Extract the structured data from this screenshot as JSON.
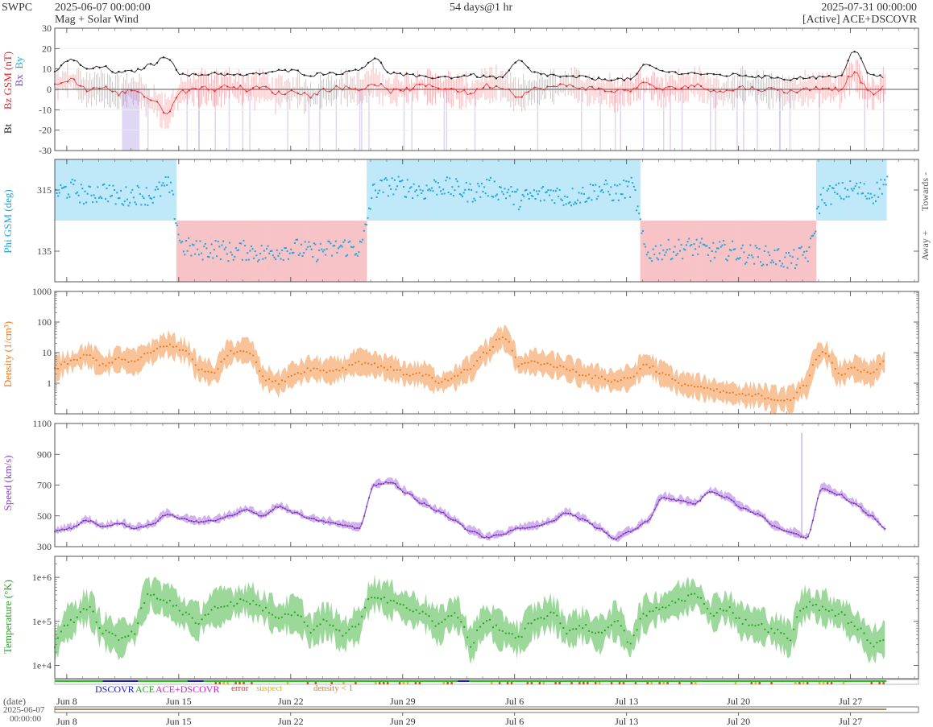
{
  "header": {
    "brand": "SWPC",
    "start_time": "2025-06-07 00:00:00",
    "product": "Mag + Solar Wind",
    "span": "54 days@1 hr",
    "end_time": "2025-07-31 00:00:00",
    "source": "[Active] ACE+DSCOVR"
  },
  "legend": {
    "dscovr": "DSCOVR",
    "ace": "ACE",
    "ace_dscovr": "ACE+DSCOVR",
    "error": "error",
    "suspect": "suspect",
    "density_lt1": "density < 1"
  },
  "footer": {
    "date_label": "(date)",
    "date_value": "2025-06-07",
    "time_value": "00:00:00"
  },
  "colors": {
    "bt": "#222222",
    "bz": "#e8242b",
    "by": "#1aa7e0",
    "bx": "#7a3fc0",
    "towards_fill": "#bfe8f8",
    "away_fill": "#f8c3c6",
    "density": "#f07a1c",
    "speed": "#8c3fd0",
    "temperature": "#22a81c"
  },
  "chart_data": [
    {
      "type": "line",
      "panel": "Magnetic field",
      "ylabel_parts": [
        "Bt",
        "Bz GSM (nT)",
        "Bx",
        "By"
      ],
      "ylim": [
        -30,
        30
      ],
      "yticks": [
        -30,
        -20,
        -10,
        0,
        10,
        20,
        30
      ],
      "x_days": [
        0,
        1,
        2,
        3,
        4,
        5,
        6,
        7,
        8,
        9,
        10,
        11,
        12,
        13,
        14,
        15,
        16,
        17,
        18,
        19,
        20,
        21,
        22,
        23,
        24,
        25,
        26,
        27,
        28,
        29,
        30,
        31,
        32,
        33,
        34,
        35,
        36,
        37,
        38,
        39,
        40,
        41,
        42,
        43,
        44,
        45,
        46,
        47,
        48,
        49,
        50,
        51,
        52,
        53
      ],
      "series": [
        {
          "name": "Bt",
          "values": [
            9,
            15,
            10,
            11,
            8,
            9,
            12,
            16,
            7,
            7,
            8,
            7,
            7,
            8,
            9,
            9,
            7,
            8,
            8,
            10,
            15,
            8,
            7,
            6,
            6,
            6,
            7,
            6,
            6,
            14,
            8,
            7,
            6,
            6,
            5,
            5,
            5,
            12,
            9,
            8,
            8,
            7,
            7,
            7,
            6,
            6,
            5,
            6,
            6,
            6,
            19,
            7,
            6,
            6
          ]
        },
        {
          "name": "Bz",
          "values": [
            2,
            5,
            0,
            1,
            -2,
            0,
            -5,
            -11,
            -1,
            1,
            0,
            2,
            0,
            1,
            -2,
            -1,
            -3,
            0,
            1,
            0,
            3,
            -1,
            0,
            2,
            1,
            0,
            -2,
            2,
            1,
            -3,
            0,
            1,
            2,
            1,
            0,
            -1,
            0,
            3,
            0,
            1,
            2,
            0,
            -1,
            1,
            0,
            0,
            -1,
            0,
            1,
            0,
            8,
            -2,
            1,
            0
          ]
        }
      ]
    },
    {
      "type": "scatter",
      "panel": "Phi GSM",
      "ylabel": "Phi GSM (deg)",
      "yticks": [
        135,
        315
      ],
      "ylim": [
        45,
        405
      ],
      "side_labels": [
        "Towards -",
        "Away +"
      ],
      "x_days": [
        0,
        1,
        2,
        3,
        4,
        5,
        6,
        7,
        8,
        9,
        10,
        11,
        12,
        13,
        14,
        15,
        16,
        17,
        18,
        19,
        20,
        21,
        22,
        23,
        24,
        25,
        26,
        27,
        28,
        29,
        30,
        31,
        32,
        33,
        34,
        35,
        36,
        37,
        38,
        39,
        40,
        41,
        42,
        43,
        44,
        45,
        46,
        47,
        48,
        49,
        50,
        51,
        52,
        53
      ],
      "values": [
        310,
        320,
        300,
        315,
        295,
        305,
        300,
        330,
        150,
        140,
        145,
        135,
        140,
        130,
        140,
        145,
        135,
        140,
        150,
        145,
        320,
        330,
        325,
        315,
        330,
        320,
        310,
        325,
        315,
        290,
        300,
        310,
        295,
        305,
        320,
        310,
        325,
        130,
        140,
        145,
        150,
        135,
        140,
        130,
        125,
        120,
        110,
        130,
        300,
        310,
        320,
        305,
        340,
        330
      ]
    },
    {
      "type": "line",
      "panel": "Density",
      "ylabel": "Density (1/cm³)",
      "scale": "log",
      "ylim": [
        0.1,
        1000
      ],
      "yticks": [
        1,
        10,
        100,
        1000
      ],
      "x_days": [
        0,
        1,
        2,
        3,
        4,
        5,
        6,
        7,
        8,
        9,
        10,
        11,
        12,
        13,
        14,
        15,
        16,
        17,
        18,
        19,
        20,
        21,
        22,
        23,
        24,
        25,
        26,
        27,
        28,
        29,
        30,
        31,
        32,
        33,
        34,
        35,
        36,
        37,
        38,
        39,
        40,
        41,
        42,
        43,
        44,
        45,
        46,
        47,
        48,
        49,
        50,
        51,
        52,
        53
      ],
      "values": [
        3,
        5,
        8,
        4,
        6,
        5,
        10,
        18,
        12,
        3,
        2,
        10,
        12,
        1.5,
        1,
        2,
        3,
        2.5,
        3,
        5,
        4,
        3,
        2,
        2,
        1,
        1.5,
        3,
        10,
        30,
        4,
        5,
        4,
        3,
        2,
        1.5,
        1.2,
        1.5,
        4,
        2,
        1,
        0.8,
        0.6,
        0.5,
        0.4,
        0.4,
        0.3,
        0.3,
        0.8,
        10,
        2,
        3,
        2,
        5,
        4
      ]
    },
    {
      "type": "line",
      "panel": "Speed",
      "ylabel": "Speed (km/s)",
      "ylim": [
        300,
        1100
      ],
      "yticks": [
        300,
        500,
        700,
        900,
        1100
      ],
      "x_days": [
        0,
        1,
        2,
        3,
        4,
        5,
        6,
        7,
        8,
        9,
        10,
        11,
        12,
        13,
        14,
        15,
        16,
        17,
        18,
        19,
        20,
        21,
        22,
        23,
        24,
        25,
        26,
        27,
        28,
        29,
        30,
        31,
        32,
        33,
        34,
        35,
        36,
        37,
        38,
        39,
        40,
        41,
        42,
        43,
        44,
        45,
        46,
        47,
        48,
        49,
        50,
        51,
        52,
        53
      ],
      "values": [
        400,
        420,
        470,
        430,
        450,
        420,
        440,
        510,
        480,
        460,
        470,
        500,
        540,
        500,
        560,
        520,
        480,
        460,
        440,
        420,
        700,
        720,
        650,
        580,
        530,
        470,
        400,
        360,
        380,
        420,
        430,
        460,
        520,
        480,
        420,
        350,
        400,
        460,
        620,
        600,
        580,
        660,
        620,
        550,
        510,
        430,
        390,
        360,
        680,
        640,
        580,
        500,
        410,
        360
      ]
    },
    {
      "type": "line",
      "panel": "Temperature",
      "ylabel": "Temperature (°K)",
      "scale": "log",
      "ylim": [
        5000,
        3000000
      ],
      "ytick_labels": [
        "1e+4",
        "1e+5",
        "1e+6"
      ],
      "x_days": [
        0,
        1,
        2,
        3,
        4,
        5,
        6,
        7,
        8,
        9,
        10,
        11,
        12,
        13,
        14,
        15,
        16,
        17,
        18,
        19,
        20,
        21,
        22,
        23,
        24,
        25,
        26,
        27,
        28,
        29,
        30,
        31,
        32,
        33,
        34,
        35,
        36,
        37,
        38,
        39,
        40,
        41,
        42,
        43,
        44,
        45,
        46,
        47,
        48,
        49,
        50,
        51,
        52,
        53
      ],
      "values": [
        30000,
        100000,
        200000,
        60000,
        40000,
        60000,
        400000,
        300000,
        150000,
        100000,
        200000,
        250000,
        300000,
        200000,
        120000,
        150000,
        60000,
        100000,
        50000,
        80000,
        400000,
        300000,
        200000,
        150000,
        80000,
        150000,
        30000,
        100000,
        60000,
        40000,
        100000,
        150000,
        60000,
        80000,
        50000,
        100000,
        30000,
        150000,
        200000,
        300000,
        400000,
        150000,
        200000,
        100000,
        80000,
        60000,
        40000,
        250000,
        200000,
        150000,
        80000,
        30000,
        40000,
        35000
      ]
    },
    {
      "type": "table",
      "panel": "Source / quality strip",
      "x_tick_labels": [
        "Jun 8",
        "Jun 15",
        "Jun 22",
        "Jun 29",
        "Jul 6",
        "Jul 13",
        "Jul 20",
        "Jul 27"
      ],
      "x_tick_days": [
        1,
        8,
        15,
        22,
        29,
        36,
        43,
        50
      ]
    }
  ]
}
